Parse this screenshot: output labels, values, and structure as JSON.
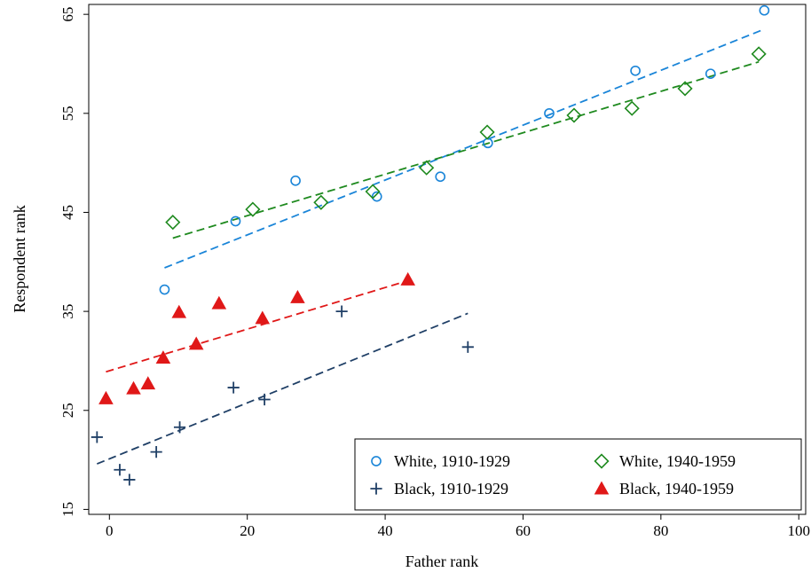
{
  "chart_data": {
    "type": "scatter",
    "xlabel": "Father rank",
    "ylabel": "Respondent rank",
    "xlim": [
      -3,
      101
    ],
    "ylim": [
      14.5,
      66
    ],
    "xticks": [
      0,
      20,
      40,
      60,
      80,
      100
    ],
    "yticks": [
      15,
      25,
      35,
      45,
      55,
      65
    ],
    "grid": false,
    "legend_position": "bottom-right",
    "series": [
      {
        "name": "White, 1910-1929",
        "marker": "circle",
        "color": "#1a85d8",
        "points": [
          [
            8,
            37.2
          ],
          [
            18.3,
            44.1
          ],
          [
            27,
            48.2
          ],
          [
            38.8,
            46.6
          ],
          [
            48,
            48.6
          ],
          [
            54.9,
            52
          ],
          [
            63.8,
            55
          ],
          [
            76.3,
            59.3
          ],
          [
            87.2,
            59
          ],
          [
            95,
            65.4
          ]
        ],
        "fit": [
          [
            8,
            39.4
          ],
          [
            95,
            63.5
          ]
        ]
      },
      {
        "name": "White, 1940-1959",
        "marker": "diamond",
        "color": "#1f8a1f",
        "points": [
          [
            9.2,
            44
          ],
          [
            20.8,
            45.3
          ],
          [
            30.7,
            46
          ],
          [
            38.2,
            47.1
          ],
          [
            46,
            49.5
          ],
          [
            54.8,
            53.1
          ],
          [
            67.4,
            54.8
          ],
          [
            75.8,
            55.5
          ],
          [
            83.5,
            57.5
          ],
          [
            94.2,
            61
          ]
        ],
        "fit": [
          [
            9.2,
            42.4
          ],
          [
            94.2,
            60.2
          ]
        ]
      },
      {
        "name": "Black, 1910-1929",
        "marker": "plus",
        "color": "#1f3f66",
        "points": [
          [
            -1.8,
            22.3
          ],
          [
            1.5,
            19
          ],
          [
            2.9,
            18
          ],
          [
            6.8,
            20.8
          ],
          [
            10.2,
            23.3
          ],
          [
            18,
            27.3
          ],
          [
            22.5,
            26.1
          ],
          [
            33.7,
            35
          ],
          [
            52,
            31.4
          ]
        ],
        "fit": [
          [
            -1.8,
            19.6
          ],
          [
            52,
            34.8
          ]
        ]
      },
      {
        "name": "Black, 1940-1959",
        "marker": "triangle",
        "color": "#e01818",
        "points": [
          [
            -0.5,
            26.2
          ],
          [
            3.5,
            27.2
          ],
          [
            5.6,
            27.7
          ],
          [
            7.8,
            30.3
          ],
          [
            10.1,
            34.9
          ],
          [
            12.6,
            31.7
          ],
          [
            15.9,
            35.8
          ],
          [
            22.2,
            34.3
          ],
          [
            27.3,
            36.4
          ],
          [
            43.3,
            38.2
          ]
        ],
        "fit": [
          [
            -0.5,
            28.9
          ],
          [
            43.3,
            38.1
          ]
        ]
      }
    ]
  }
}
